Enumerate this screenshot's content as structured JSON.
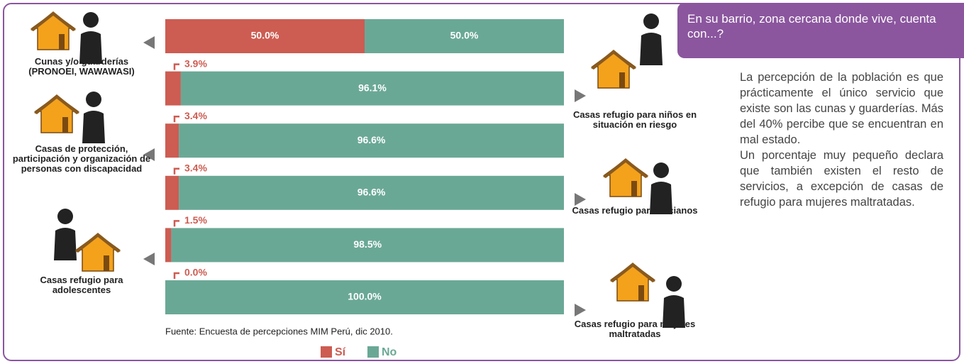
{
  "chart_data": {
    "type": "stacked-barh",
    "categories": [
      "Cunas y/o guarderías (PRONOEI, WAWAWASI)",
      "Casas refugio para niños en situación en riesgo",
      "Casas de protección, participación y organización de personas con discapacidad",
      "Casas refugio para ancianos",
      "Casas refugio para adolescentes",
      "Casas refugio para mujeres maltratadas"
    ],
    "series": [
      {
        "name": "Sí",
        "color": "#cd5c52",
        "values": [
          50.0,
          3.9,
          3.4,
          3.4,
          1.5,
          0.0
        ],
        "value_labels": [
          "50.0%",
          "3.9%",
          "3.4%",
          "3.4%",
          "1.5%",
          "0.0%"
        ]
      },
      {
        "name": "No",
        "color": "#6aa896",
        "values": [
          50.0,
          96.1,
          96.6,
          96.6,
          98.5,
          100.0
        ],
        "value_labels": [
          "50.0%",
          "96.1%",
          "96.6%",
          "96.6%",
          "98.5%",
          "100.0%"
        ]
      }
    ],
    "xlim": [
      0,
      100
    ],
    "source": "Fuente: Encuesta de percepciones MIM Perú, dic 2010."
  },
  "sidebar": {
    "question": "En su barrio, zona cercana donde vive, cuenta con...?",
    "paragraphs": [
      "La percepción de la población es que prácticamente el único servicio que existe son las cunas y guarderías. Más del 40% percibe que se encuentran en mal estado.",
      "Un porcentaje muy pequeño declara que también existen el resto de servicios, a excepción de casas de refugio para mujeres maltratadas."
    ]
  }
}
